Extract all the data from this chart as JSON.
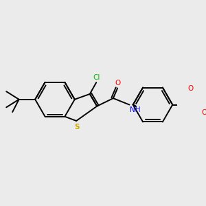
{
  "background_color": "#ebebeb",
  "figsize": [
    3.0,
    3.0
  ],
  "dpi": 100,
  "colors": {
    "C": "#000000",
    "S": "#ccaa00",
    "N": "#0000ff",
    "O": "#ff0000",
    "Cl": "#00bb00",
    "H": "#000000"
  },
  "bond_color": "#000000",
  "bond_lw": 1.4,
  "font_size": 7.5
}
